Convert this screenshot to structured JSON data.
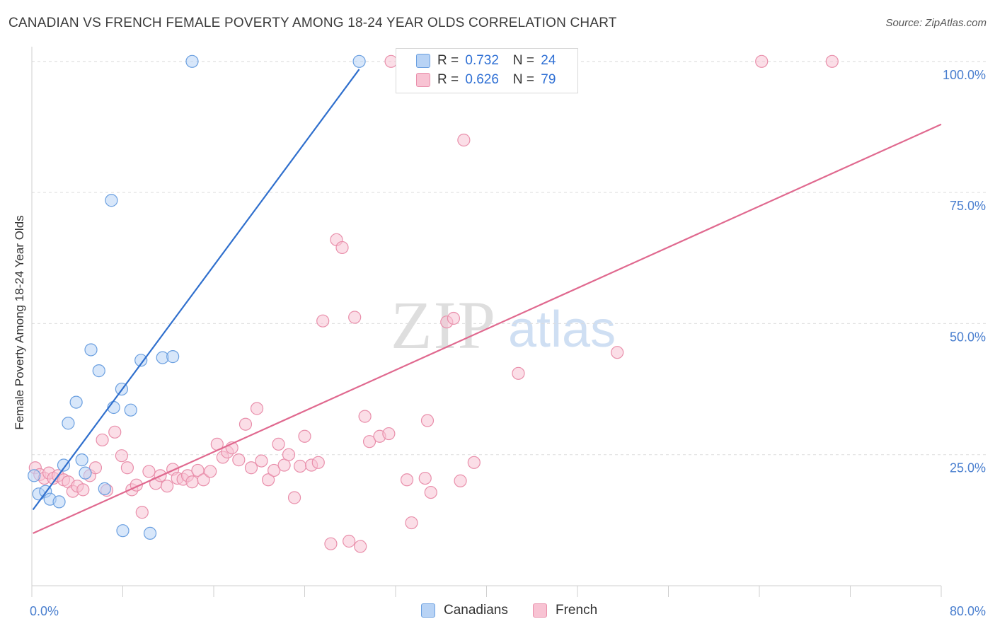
{
  "title": "CANADIAN VS FRENCH FEMALE POVERTY AMONG 18-24 YEAR OLDS CORRELATION CHART",
  "source": "Source: ZipAtlas.com",
  "watermark": {
    "zip": "ZIP",
    "atlas": "atlas"
  },
  "colors": {
    "canadians_fill": "#b8d3f5",
    "canadians_stroke": "#6a9fe0",
    "canadians_line": "#2f6fcd",
    "french_fill": "#f8c3d3",
    "french_stroke": "#e98fab",
    "french_line": "#e0698f",
    "tick_text": "#4a7fcf",
    "grid": "#dddddd"
  },
  "legend_top": {
    "canadians": {
      "r_label": "R = ",
      "r_value": "0.732",
      "n_label": "N = ",
      "n_value": "24"
    },
    "french": {
      "r_label": "R = ",
      "r_value": "0.626",
      "n_label": "N = ",
      "n_value": "79"
    }
  },
  "legend_bottom": {
    "canadians": "Canadians",
    "french": "French"
  },
  "chart_data": {
    "type": "scatter",
    "title": "CANADIAN VS FRENCH FEMALE POVERTY AMONG 18-24 YEAR OLDS CORRELATION CHART",
    "xlabel": "",
    "ylabel": "Female Poverty Among 18-24 Year Olds",
    "xlim": [
      0,
      80
    ],
    "ylim": [
      0,
      102
    ],
    "x_tick_labels": [
      "0.0%",
      "80.0%"
    ],
    "y_ticks": [
      25,
      50,
      75,
      100
    ],
    "y_tick_labels": [
      "25.0%",
      "50.0%",
      "75.0%",
      "100.0%"
    ],
    "grid": true,
    "legend_placement": "bottom-center",
    "series": [
      {
        "name": "Canadians",
        "r": 0.732,
        "n": 24,
        "trend": {
          "x": [
            0.1,
            28.8
          ],
          "y": [
            14.5,
            98.5
          ]
        },
        "points": [
          [
            0.2,
            21.0
          ],
          [
            0.6,
            17.5
          ],
          [
            1.2,
            18.0
          ],
          [
            1.6,
            16.5
          ],
          [
            2.4,
            16.0
          ],
          [
            2.8,
            23.0
          ],
          [
            3.2,
            31.0
          ],
          [
            3.9,
            35.0
          ],
          [
            4.4,
            24.0
          ],
          [
            4.7,
            21.5
          ],
          [
            5.2,
            45.0
          ],
          [
            5.9,
            41.0
          ],
          [
            6.4,
            18.5
          ],
          [
            7.0,
            73.5
          ],
          [
            7.2,
            34.0
          ],
          [
            7.9,
            37.5
          ],
          [
            8.0,
            10.5
          ],
          [
            8.7,
            33.5
          ],
          [
            9.6,
            43.0
          ],
          [
            10.4,
            10.0
          ],
          [
            11.5,
            43.5
          ],
          [
            12.4,
            43.7
          ],
          [
            14.1,
            100.0
          ],
          [
            28.8,
            100.0
          ]
        ]
      },
      {
        "name": "French",
        "r": 0.626,
        "n": 79,
        "trend": {
          "x": [
            0.1,
            80.0
          ],
          "y": [
            10.0,
            88.0
          ]
        },
        "points": [
          [
            0.3,
            22.5
          ],
          [
            0.7,
            21.2
          ],
          [
            1.1,
            20.5
          ],
          [
            1.5,
            21.5
          ],
          [
            1.9,
            20.5
          ],
          [
            2.3,
            21.0
          ],
          [
            2.8,
            20.2
          ],
          [
            3.2,
            19.8
          ],
          [
            3.6,
            18.0
          ],
          [
            4.0,
            19.0
          ],
          [
            4.5,
            18.3
          ],
          [
            5.1,
            21.0
          ],
          [
            5.6,
            22.5
          ],
          [
            6.2,
            27.8
          ],
          [
            6.6,
            18.2
          ],
          [
            7.3,
            29.3
          ],
          [
            7.9,
            24.8
          ],
          [
            8.4,
            22.5
          ],
          [
            8.8,
            18.3
          ],
          [
            9.2,
            19.2
          ],
          [
            9.7,
            14.0
          ],
          [
            10.3,
            21.8
          ],
          [
            10.9,
            19.5
          ],
          [
            11.3,
            21.0
          ],
          [
            11.9,
            19.0
          ],
          [
            12.4,
            22.2
          ],
          [
            12.8,
            20.5
          ],
          [
            13.3,
            20.3
          ],
          [
            13.7,
            21.0
          ],
          [
            14.1,
            19.8
          ],
          [
            14.6,
            22.0
          ],
          [
            15.1,
            20.2
          ],
          [
            15.7,
            21.8
          ],
          [
            16.3,
            27.0
          ],
          [
            16.8,
            24.5
          ],
          [
            17.2,
            25.5
          ],
          [
            17.6,
            26.3
          ],
          [
            18.2,
            24.0
          ],
          [
            18.8,
            30.8
          ],
          [
            19.3,
            22.5
          ],
          [
            19.8,
            33.8
          ],
          [
            20.2,
            23.8
          ],
          [
            20.8,
            20.2
          ],
          [
            21.3,
            22.0
          ],
          [
            21.7,
            27.0
          ],
          [
            22.2,
            23.0
          ],
          [
            22.6,
            25.0
          ],
          [
            23.1,
            16.8
          ],
          [
            23.6,
            22.8
          ],
          [
            24.0,
            28.5
          ],
          [
            24.6,
            23.0
          ],
          [
            25.2,
            23.5
          ],
          [
            25.6,
            50.5
          ],
          [
            26.3,
            8.0
          ],
          [
            26.8,
            66.0
          ],
          [
            27.3,
            64.5
          ],
          [
            27.9,
            8.5
          ],
          [
            28.4,
            51.2
          ],
          [
            28.9,
            7.5
          ],
          [
            29.3,
            32.3
          ],
          [
            29.7,
            27.5
          ],
          [
            30.6,
            28.5
          ],
          [
            31.4,
            29.0
          ],
          [
            31.6,
            100.0
          ],
          [
            33.0,
            20.2
          ],
          [
            33.4,
            12.0
          ],
          [
            34.6,
            20.5
          ],
          [
            34.8,
            31.5
          ],
          [
            35.1,
            17.8
          ],
          [
            36.5,
            50.3
          ],
          [
            37.1,
            51.0
          ],
          [
            37.7,
            20.0
          ],
          [
            38.0,
            85.0
          ],
          [
            38.9,
            23.5
          ],
          [
            40.0,
            100.0
          ],
          [
            42.8,
            40.5
          ],
          [
            51.5,
            44.5
          ],
          [
            64.2,
            100.0
          ],
          [
            70.4,
            100.0
          ]
        ]
      }
    ]
  }
}
